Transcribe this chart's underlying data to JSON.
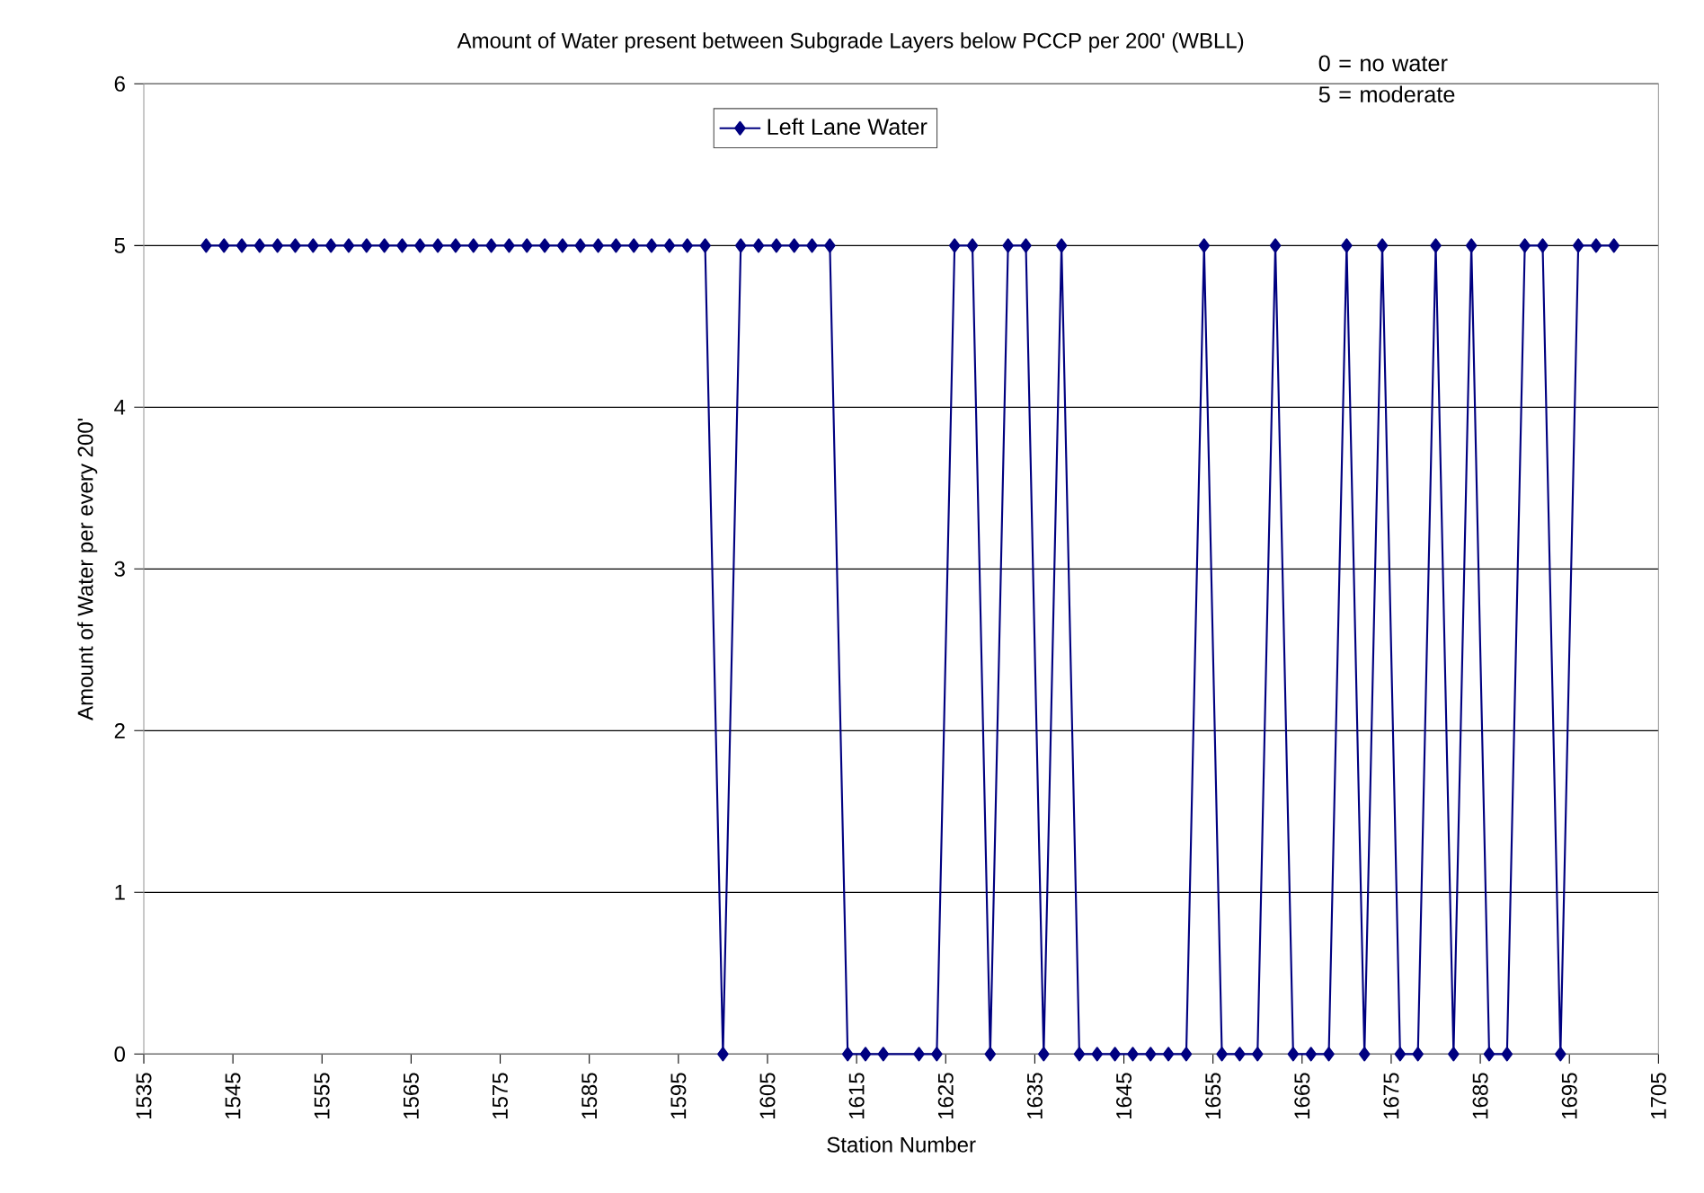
{
  "chart_data": {
    "type": "line",
    "title": "Amount of Water present between Subgrade Layers below PCCP per 200' (WBLL)",
    "xlabel": "Station Number",
    "ylabel": "Amount of Water per every 200'",
    "annotations": [
      "0 = no water 5 = moderate"
    ],
    "x": [
      1542,
      1544,
      1546,
      1548,
      1550,
      1552,
      1554,
      1556,
      1558,
      1560,
      1562,
      1564,
      1566,
      1568,
      1570,
      1572,
      1574,
      1576,
      1578,
      1580,
      1582,
      1584,
      1586,
      1588,
      1590,
      1592,
      1594,
      1596,
      1598,
      1600,
      1602,
      1604,
      1606,
      1608,
      1610,
      1612,
      1614,
      1616,
      1618,
      1622,
      1624,
      1626,
      1628,
      1630,
      1632,
      1634,
      1636,
      1638,
      1640,
      1642,
      1644,
      1646,
      1648,
      1650,
      1652,
      1654,
      1656,
      1658,
      1660,
      1662,
      1664,
      1666,
      1668,
      1670,
      1672,
      1674,
      1676,
      1678,
      1680,
      1682,
      1684,
      1686,
      1688,
      1690,
      1692,
      1694,
      1696,
      1698,
      1700
    ],
    "series": [
      {
        "name": "Left Lane Water",
        "color": "#000080",
        "values": [
          5,
          5,
          5,
          5,
          5,
          5,
          5,
          5,
          5,
          5,
          5,
          5,
          5,
          5,
          5,
          5,
          5,
          5,
          5,
          5,
          5,
          5,
          5,
          5,
          5,
          5,
          5,
          5,
          5,
          0,
          5,
          5,
          5,
          5,
          5,
          5,
          0,
          0,
          0,
          0,
          0,
          5,
          5,
          0,
          5,
          5,
          0,
          5,
          0,
          0,
          0,
          0,
          0,
          0,
          0,
          5,
          0,
          0,
          0,
          5,
          0,
          0,
          0,
          5,
          0,
          5,
          0,
          0,
          5,
          0,
          5,
          0,
          0,
          5,
          5,
          0,
          5,
          5,
          5
        ]
      }
    ],
    "xlim": [
      1535,
      1705
    ],
    "xticks": [
      1535,
      1545,
      1555,
      1565,
      1575,
      1585,
      1595,
      1605,
      1615,
      1625,
      1635,
      1645,
      1655,
      1665,
      1675,
      1685,
      1695,
      1705
    ],
    "ylim": [
      0,
      6
    ],
    "yticks": [
      0,
      1,
      2,
      3,
      4,
      5,
      6
    ],
    "grid": "y",
    "legend": "top",
    "marker": "diamond",
    "line_style": "solid"
  }
}
